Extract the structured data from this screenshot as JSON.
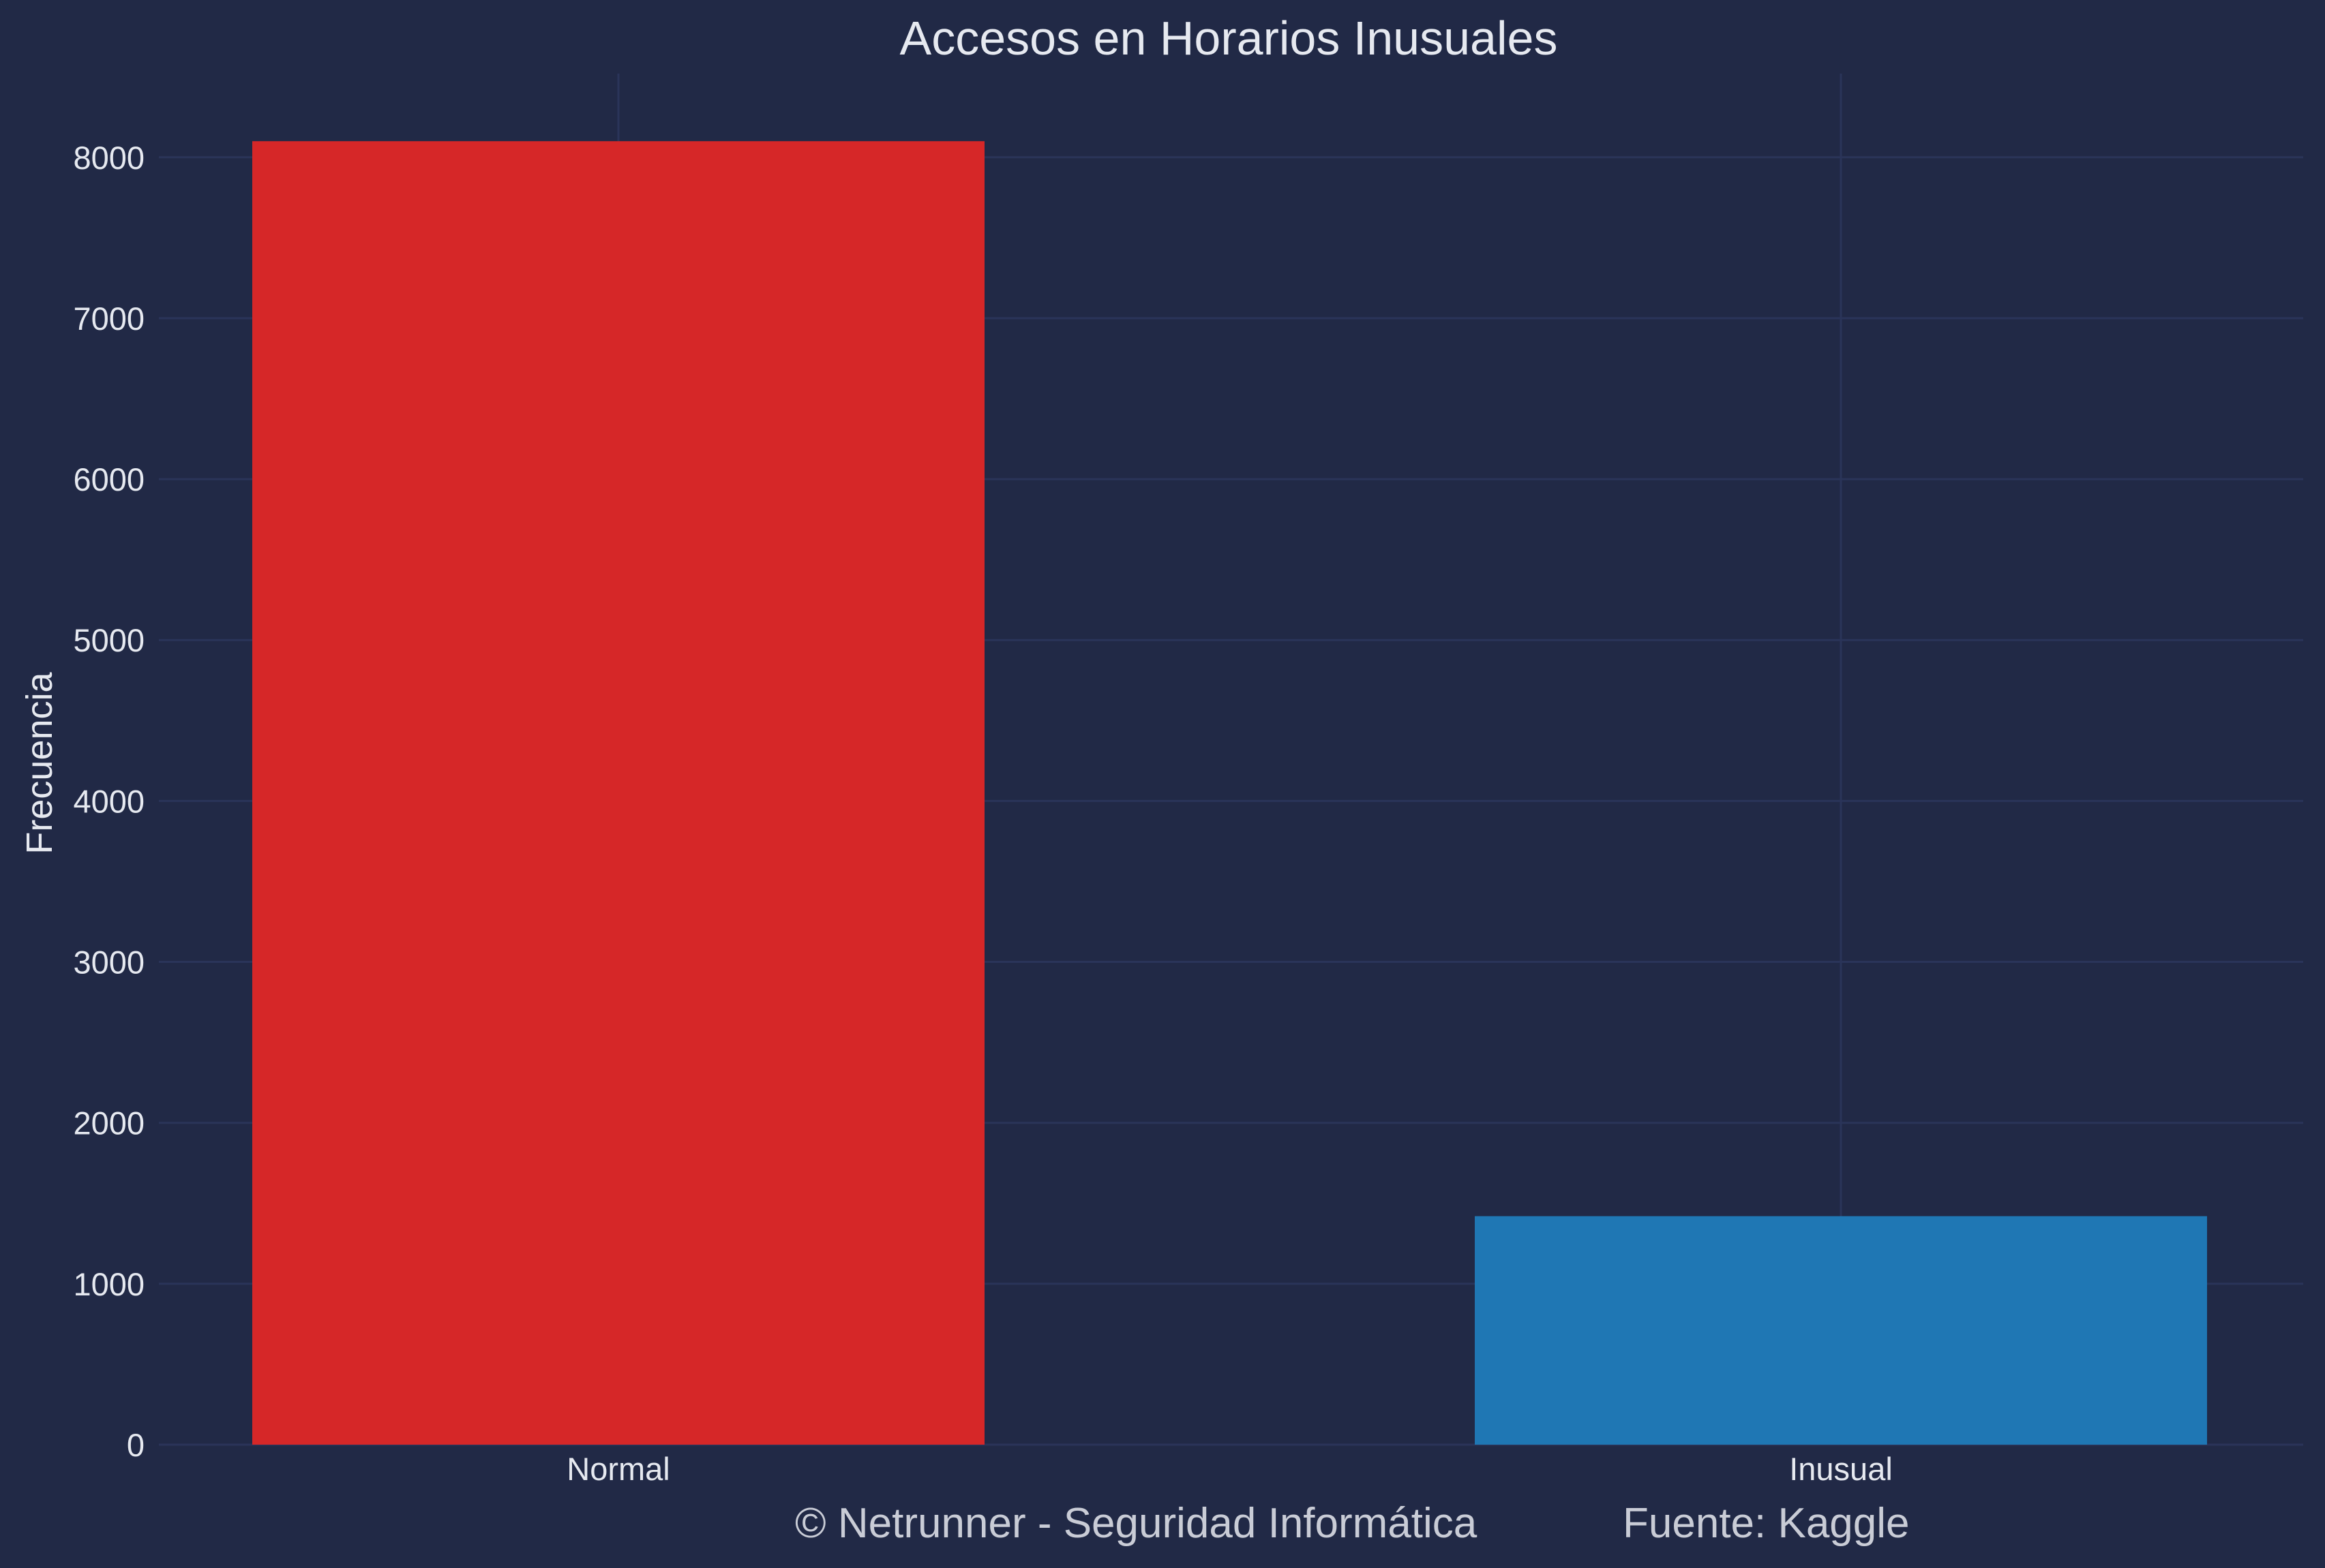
{
  "chart_data": {
    "type": "bar",
    "title": "Accesos en Horarios Inusuales",
    "xlabel": "",
    "ylabel": "Frecuencia",
    "categories": [
      "Normal",
      "Inusual"
    ],
    "values": [
      8100,
      1420
    ],
    "ylim": [
      0,
      8520
    ],
    "yticks": [
      0,
      1000,
      2000,
      3000,
      4000,
      5000,
      6000,
      7000,
      8000
    ],
    "grid": true,
    "bar_colors": [
      "#d62728",
      "#1f77b4"
    ]
  },
  "footer": {
    "copyright": "© Netrunner - Seguridad Informática",
    "source": "Fuente: Kaggle"
  },
  "colors": {
    "background": "#212946",
    "grid": "#2a3459",
    "text": "#e6e9f0"
  }
}
